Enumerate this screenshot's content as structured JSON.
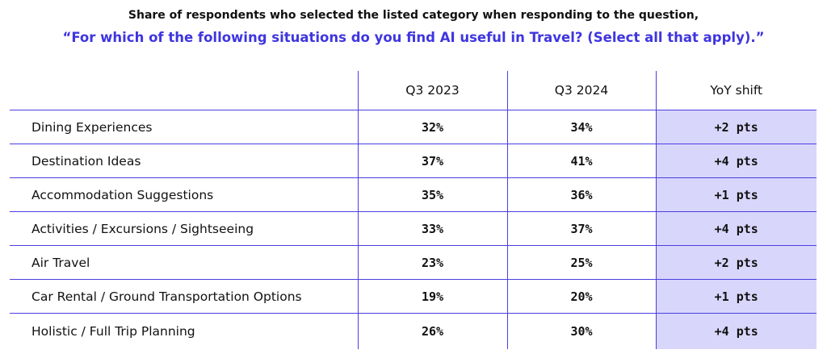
{
  "header": {
    "subtitle": "Share of respondents who selected the listed category when responding to the question,",
    "question": "“For which of the following situations do you find AI useful in Travel? (Select all that apply).”"
  },
  "colors": {
    "accent": "#3f35e0",
    "grid": "#4a3fe0",
    "highlight_fill": "#d9d6fb"
  },
  "chart_data": {
    "type": "table",
    "columns": [
      "",
      "Q3 2023",
      "Q3 2024",
      "YoY shift"
    ],
    "rows": [
      {
        "category": "Dining Experiences",
        "q3_2023": "32%",
        "q3_2024": "34%",
        "yoy": "+2 pts"
      },
      {
        "category": "Destination Ideas",
        "q3_2023": "37%",
        "q3_2024": "41%",
        "yoy": "+4 pts"
      },
      {
        "category": "Accommodation Suggestions",
        "q3_2023": "35%",
        "q3_2024": "36%",
        "yoy": "+1 pts"
      },
      {
        "category": "Activities / Excursions / Sightseeing",
        "q3_2023": "33%",
        "q3_2024": "37%",
        "yoy": "+4 pts"
      },
      {
        "category": "Air Travel",
        "q3_2023": "23%",
        "q3_2024": "25%",
        "yoy": "+2 pts"
      },
      {
        "category": "Car Rental / Ground Transportation Options",
        "q3_2023": "19%",
        "q3_2024": "20%",
        "yoy": "+1 pts"
      },
      {
        "category": "Holistic / Full Trip Planning",
        "q3_2023": "26%",
        "q3_2024": "30%",
        "yoy": "+4 pts"
      }
    ]
  }
}
